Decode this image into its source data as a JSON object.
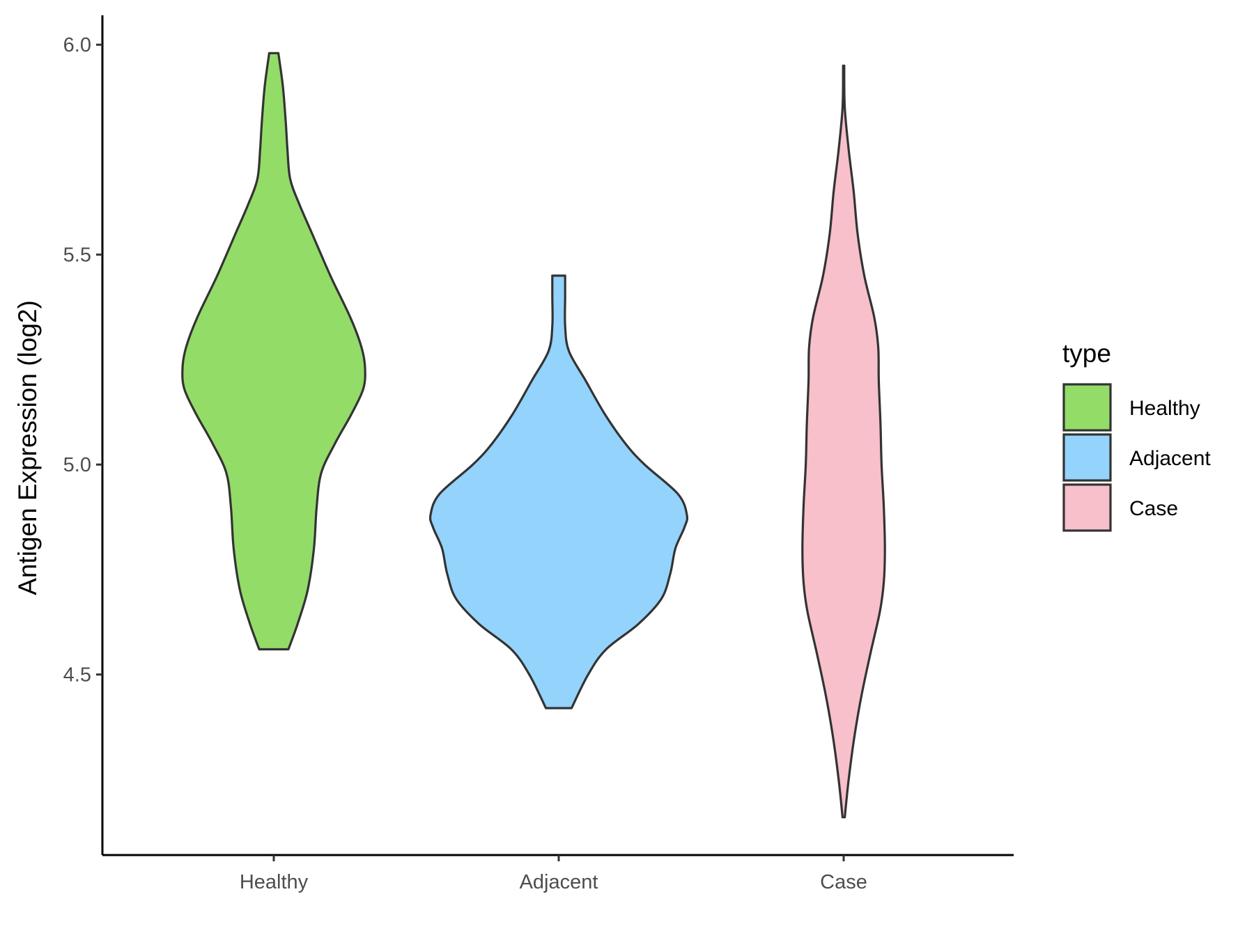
{
  "chart_data": {
    "type": "violin",
    "categories": [
      "Healthy",
      "Adjacent",
      "Case"
    ],
    "ylabel": "Antigen Expression (log2)",
    "xlabel": "",
    "ylim": [
      4.07,
      6.07
    ],
    "yticks": [
      4.5,
      5.0,
      5.5,
      6.0
    ],
    "ytick_labels": [
      "4.5",
      "5.0",
      "5.5",
      "6.0"
    ],
    "legend": {
      "title": "type",
      "position": "right",
      "entries": [
        "Healthy",
        "Adjacent",
        "Case"
      ]
    },
    "colors": {
      "Healthy": "#93dc68",
      "Adjacent": "#93d3fc",
      "Case": "#f7c0cb",
      "outline": "#333333"
    },
    "series": [
      {
        "category": "Healthy",
        "min": 4.56,
        "max": 5.98,
        "density_profile": [
          [
            4.56,
            0.16
          ],
          [
            4.62,
            0.26
          ],
          [
            4.7,
            0.37
          ],
          [
            4.8,
            0.44
          ],
          [
            4.9,
            0.47
          ],
          [
            4.98,
            0.52
          ],
          [
            5.05,
            0.67
          ],
          [
            5.12,
            0.85
          ],
          [
            5.18,
            0.98
          ],
          [
            5.23,
            1.0
          ],
          [
            5.28,
            0.96
          ],
          [
            5.35,
            0.84
          ],
          [
            5.45,
            0.62
          ],
          [
            5.55,
            0.42
          ],
          [
            5.62,
            0.28
          ],
          [
            5.68,
            0.18
          ],
          [
            5.75,
            0.15
          ],
          [
            5.82,
            0.13
          ],
          [
            5.9,
            0.1
          ],
          [
            5.98,
            0.05
          ]
        ]
      },
      {
        "category": "Adjacent",
        "min": 4.42,
        "max": 5.45,
        "density_profile": [
          [
            4.42,
            0.1
          ],
          [
            4.5,
            0.23
          ],
          [
            4.56,
            0.37
          ],
          [
            4.62,
            0.62
          ],
          [
            4.68,
            0.8
          ],
          [
            4.74,
            0.87
          ],
          [
            4.8,
            0.91
          ],
          [
            4.85,
            0.98
          ],
          [
            4.88,
            1.0
          ],
          [
            4.93,
            0.93
          ],
          [
            5.0,
            0.67
          ],
          [
            5.05,
            0.52
          ],
          [
            5.12,
            0.36
          ],
          [
            5.2,
            0.21
          ],
          [
            5.27,
            0.08
          ],
          [
            5.33,
            0.05
          ],
          [
            5.4,
            0.05
          ],
          [
            5.45,
            0.05
          ]
        ]
      },
      {
        "category": "Case",
        "min": 4.16,
        "max": 5.95,
        "density_profile": [
          [
            4.16,
            0.02
          ],
          [
            4.25,
            0.09
          ],
          [
            4.35,
            0.19
          ],
          [
            4.45,
            0.32
          ],
          [
            4.55,
            0.48
          ],
          [
            4.65,
            0.65
          ],
          [
            4.72,
            0.72
          ],
          [
            4.8,
            0.74
          ],
          [
            4.9,
            0.72
          ],
          [
            5.0,
            0.68
          ],
          [
            5.1,
            0.66
          ],
          [
            5.2,
            0.63
          ],
          [
            5.28,
            0.62
          ],
          [
            5.35,
            0.55
          ],
          [
            5.45,
            0.37
          ],
          [
            5.55,
            0.25
          ],
          [
            5.65,
            0.18
          ],
          [
            5.75,
            0.09
          ],
          [
            5.85,
            0.02
          ],
          [
            5.95,
            0.01
          ]
        ]
      }
    ]
  }
}
